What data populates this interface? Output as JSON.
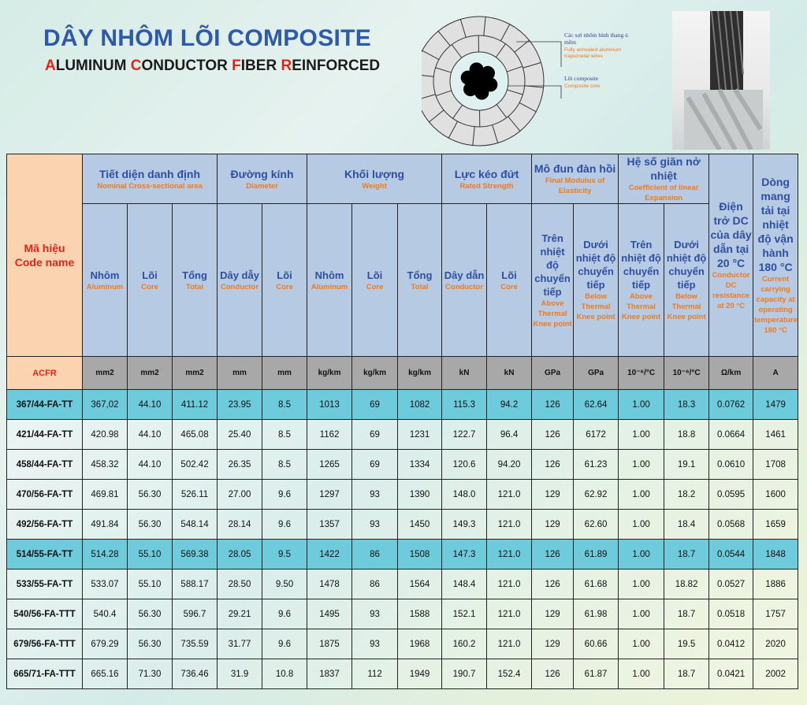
{
  "header": {
    "title": "DÂY NHÔM LÕI COMPOSITE",
    "subtitle_parts": [
      {
        "initial": "A",
        "rest": "LUMINUM "
      },
      {
        "initial": "C",
        "rest": "ONDUCTOR "
      },
      {
        "initial": "F",
        "rest": "IBER "
      },
      {
        "initial": "R",
        "rest": "EINFORCED"
      }
    ]
  },
  "diagram": {
    "label_wires_vi": "Các sợi nhôm hình thang ủ mềm",
    "label_wires_en": "Fully annealed aluminum trapezoidal wires",
    "label_core_vi": "Lõi composite",
    "label_core_en": "Composite core"
  },
  "colors": {
    "title": "#2e5aa8",
    "accent_red": "#e2231a",
    "english_orange": "#f07a1a",
    "header_blue": "#b6cae4",
    "highlight_row": "#6ecbdc",
    "code_column": "#fbd3b0",
    "unit_row": "#a8a8a8"
  },
  "table": {
    "code_header": {
      "vi": "Mã hiệu",
      "en": "Code name"
    },
    "groups": [
      {
        "vi": "Tiết diện danh định",
        "en": "Nominal Cross-sectional area"
      },
      {
        "vi": "Đường kính",
        "en": "Diameter"
      },
      {
        "vi": "Khối lượng",
        "en": "Weight"
      },
      {
        "vi": "Lực kéo đứt",
        "en": "Rated Strength"
      },
      {
        "vi": "Mô đun đàn hồi",
        "en": "Final Modulus of Elasticity"
      },
      {
        "vi": "Hệ số giãn nở nhiệt",
        "en": "Coefficient of linear Expansion"
      }
    ],
    "resistance_header": {
      "vi": "Điện trở DC của dây dẫn tại 20 °C",
      "en": "Conductor DC resistance at 20 °C"
    },
    "current_header": {
      "vi": "Dòng mang tải tại nhiệt độ vận hành 180 °C",
      "en": "Current carrying capacity at operating temperature 180 °C"
    },
    "subheaders": [
      {
        "vi": "Nhôm",
        "en": "Aluminum"
      },
      {
        "vi": "Lõi",
        "en": "Core"
      },
      {
        "vi": "Tổng",
        "en": "Total"
      },
      {
        "vi": "Dây dẫy",
        "en": "Conductor"
      },
      {
        "vi": "Lõi",
        "en": "Core"
      },
      {
        "vi": "Nhôm",
        "en": "Aluminum"
      },
      {
        "vi": "Lõi",
        "en": "Core"
      },
      {
        "vi": "Tổng",
        "en": "Total"
      },
      {
        "vi": "Dây dẫn",
        "en": "Conductor"
      },
      {
        "vi": "Lõi",
        "en": "Core"
      },
      {
        "vi": "Trên nhiệt độ chuyển tiếp",
        "en": "Above Thermal Knee point"
      },
      {
        "vi": "Dưới nhiệt độ chuyển tiếp",
        "en": "Below Thermal Knee point"
      },
      {
        "vi": "Trên nhiệt độ chuyển tiếp",
        "en": "Above Thermal Knee point"
      },
      {
        "vi": "Dưới nhiệt độ chuyển tiếp",
        "en": "Below Thermal Knee point"
      }
    ],
    "units": [
      "ACFR",
      "mm2",
      "mm2",
      "mm2",
      "mm",
      "mm",
      "kg/km",
      "kg/km",
      "kg/km",
      "kN",
      "kN",
      "GPa",
      "GPa",
      "10⁻⁶/°C",
      "10⁻⁶/°C",
      "Ω/km",
      "A"
    ],
    "rows": [
      {
        "highlight": true,
        "cells": [
          "367/44-FA-TT",
          "367,02",
          "44.10",
          "411.12",
          "23.95",
          "8.5",
          "1013",
          "69",
          "1082",
          "115.3",
          "94.2",
          "126",
          "62.64",
          "1.00",
          "18.3",
          "0.0762",
          "1479"
        ]
      },
      {
        "highlight": false,
        "cells": [
          "421/44-FA-TT",
          "420.98",
          "44.10",
          "465.08",
          "25.40",
          "8.5",
          "1162",
          "69",
          "1231",
          "122.7",
          "96.4",
          "126",
          "6172",
          "1.00",
          "18.8",
          "0.0664",
          "1461"
        ]
      },
      {
        "highlight": false,
        "cells": [
          "458/44-FA-TT",
          "458.32",
          "44.10",
          "502.42",
          "26.35",
          "8.5",
          "1265",
          "69",
          "1334",
          "120.6",
          "94.20",
          "126",
          "61.23",
          "1.00",
          "19.1",
          "0.0610",
          "1708"
        ]
      },
      {
        "highlight": false,
        "cells": [
          "470/56-FA-TT",
          "469.81",
          "56.30",
          "526.11",
          "27.00",
          "9.6",
          "1297",
          "93",
          "1390",
          "148.0",
          "121.0",
          "129",
          "62.92",
          "1.00",
          "18.2",
          "0.0595",
          "1600"
        ]
      },
      {
        "highlight": false,
        "cells": [
          "492/56-FA-TT",
          "491.84",
          "56.30",
          "548.14",
          "28.14",
          "9.6",
          "1357",
          "93",
          "1450",
          "149.3",
          "121.0",
          "129",
          "62.60",
          "1.00",
          "18.4",
          "0.0568",
          "1659"
        ]
      },
      {
        "highlight": true,
        "cells": [
          "514/55-FA-TT",
          "514.28",
          "55.10",
          "569.38",
          "28.05",
          "9.5",
          "1422",
          "86",
          "1508",
          "147.3",
          "121.0",
          "126",
          "61.89",
          "1.00",
          "18.7",
          "0.0544",
          "1848"
        ]
      },
      {
        "highlight": false,
        "cells": [
          "533/55-FA-TT",
          "533.07",
          "55.10",
          "588.17",
          "28.50",
          "9.50",
          "1478",
          "86",
          "1564",
          "148.4",
          "121.0",
          "126",
          "61.68",
          "1.00",
          "18.82",
          "0.0527",
          "1886"
        ]
      },
      {
        "highlight": false,
        "cells": [
          "540/56-FA-TTT",
          "540.4",
          "56.30",
          "596.7",
          "29.21",
          "9.6",
          "1495",
          "93",
          "1588",
          "152.1",
          "121.0",
          "129",
          "61.98",
          "1.00",
          "18.7",
          "0.0518",
          "1757"
        ]
      },
      {
        "highlight": false,
        "cells": [
          "679/56-FA-TTT",
          "679.29",
          "56.30",
          "735.59",
          "31.77",
          "9.6",
          "1875",
          "93",
          "1968",
          "160.2",
          "121.0",
          "129",
          "60.66",
          "1.00",
          "19.5",
          "0.0412",
          "2020"
        ]
      },
      {
        "highlight": false,
        "cells": [
          "665/71-FA-TTT",
          "665.16",
          "71.30",
          "736.46",
          "31.9",
          "10.8",
          "1837",
          "112",
          "1949",
          "190.7",
          "152.4",
          "126",
          "61.87",
          "1.00",
          "18.7",
          "0.0421",
          "2002"
        ]
      }
    ]
  }
}
